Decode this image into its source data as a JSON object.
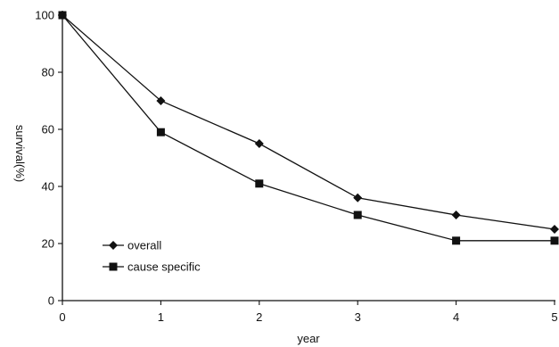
{
  "chart_data": {
    "type": "line",
    "title": "",
    "xlabel": "year",
    "ylabel": "survival(%)",
    "x": [
      0,
      1,
      2,
      3,
      4,
      5
    ],
    "xlim": [
      0,
      5
    ],
    "ylim": [
      0,
      100
    ],
    "x_ticks": [
      "0",
      "1",
      "2",
      "3",
      "4",
      "5"
    ],
    "y_ticks": [
      "0",
      "20",
      "40",
      "60",
      "80",
      "100"
    ],
    "grid": false,
    "legend_position": "bottom-left",
    "series": [
      {
        "name": "overall",
        "marker": "diamond",
        "values": [
          100,
          70,
          55,
          36,
          30,
          25
        ]
      },
      {
        "name": "cause specific",
        "marker": "square",
        "values": [
          100,
          59,
          41,
          30,
          21,
          21
        ]
      }
    ]
  }
}
